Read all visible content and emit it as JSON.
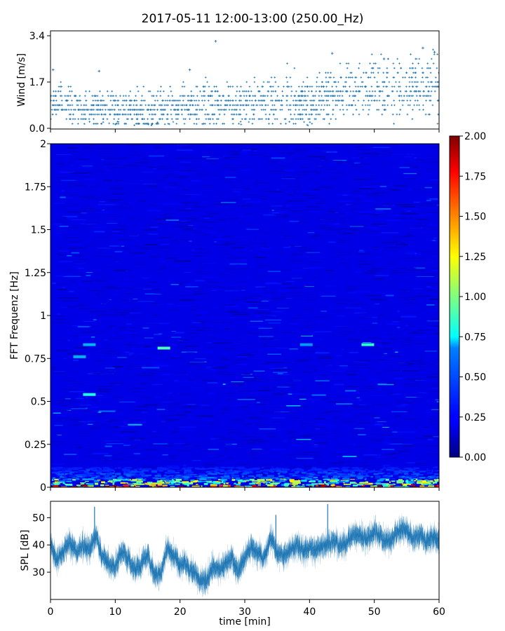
{
  "title": "2017-05-11 12:00-13:00 (250.00_Hz)",
  "colors": {
    "series": "#1f77b4",
    "axis": "#000000",
    "background": "#ffffff"
  },
  "chart_data": [
    {
      "type": "scatter",
      "panel": "wind",
      "ylabel": "Wind [m/s]",
      "xlim": [
        0,
        60
      ],
      "ylim": [
        0,
        3.4
      ],
      "yticks": [
        0.0,
        1.7,
        3.4
      ],
      "ytick_labels": [
        "0.0",
        "1.7",
        "3.4"
      ],
      "xticks": [
        0,
        10,
        20,
        30,
        40,
        50,
        60
      ],
      "marker": "+",
      "color": "#1f77b4",
      "trend": {
        "x": [
          0,
          5,
          10,
          15,
          20,
          25,
          30,
          35,
          40,
          45,
          50,
          55,
          60
        ],
        "y": [
          1.0,
          0.75,
          0.7,
          0.65,
          0.8,
          0.85,
          0.9,
          1.0,
          0.95,
          1.25,
          1.55,
          1.45,
          1.5
        ]
      },
      "outliers": [
        {
          "x": 0.4,
          "y": 2.15
        },
        {
          "x": 7.5,
          "y": 2.1
        },
        {
          "x": 21.5,
          "y": 2.15
        },
        {
          "x": 25.5,
          "y": 3.2
        },
        {
          "x": 43.5,
          "y": 2.75
        },
        {
          "x": 51.5,
          "y": 2.55
        },
        {
          "x": 57.5,
          "y": 2.95
        },
        {
          "x": 59.3,
          "y": 2.8
        }
      ]
    },
    {
      "type": "heatmap",
      "panel": "spectrogram",
      "ylabel": "FFT Frequenz [Hz]",
      "xlim": [
        0,
        60
      ],
      "ylim": [
        0,
        2
      ],
      "yticks": [
        0,
        0.25,
        0.5,
        0.75,
        1,
        1.25,
        1.5,
        1.75,
        2
      ],
      "ytick_labels": [
        "0",
        "0.25",
        "0.5",
        "0.75",
        "1",
        "1.25",
        "1.5",
        "1.75",
        "2"
      ],
      "colormap": "jet",
      "clim": [
        0,
        2
      ],
      "typical_value": 0.2,
      "low_frequency_band": {
        "freq_max": 0.05,
        "value_range": [
          0.8,
          2.0
        ]
      },
      "hotspots": [
        {
          "t": 6,
          "f": 0.54,
          "value": 0.8
        },
        {
          "t": 17.5,
          "f": 0.81,
          "value": 0.9
        },
        {
          "t": 49,
          "f": 0.83,
          "value": 0.85
        },
        {
          "t": 4.5,
          "f": 0.76,
          "value": 0.6
        },
        {
          "t": 6,
          "f": 0.83,
          "value": 0.6
        },
        {
          "t": 39.5,
          "f": 0.83,
          "value": 0.55
        }
      ]
    },
    {
      "type": "colorbar",
      "panel": "colorbar",
      "ticks": [
        0.0,
        0.25,
        0.5,
        0.75,
        1.0,
        1.25,
        1.5,
        1.75,
        2.0
      ],
      "tick_labels": [
        "0.00",
        "0.25",
        "0.50",
        "0.75",
        "1.00",
        "1.25",
        "1.50",
        "1.75",
        "2.00"
      ],
      "colormap": "jet",
      "range": [
        0,
        2
      ]
    },
    {
      "type": "line",
      "panel": "spl",
      "ylabel": "SPL [dB]",
      "xlabel": "time [min]",
      "xlim": [
        0,
        60
      ],
      "ylim": [
        20,
        56
      ],
      "yticks": [
        30,
        40,
        50
      ],
      "ytick_labels": [
        "30",
        "40",
        "50"
      ],
      "xticks": [
        0,
        10,
        20,
        30,
        40,
        50,
        60
      ],
      "xtick_labels": [
        "0",
        "10",
        "20",
        "30",
        "40",
        "50",
        "60"
      ],
      "color": "#1f77b4",
      "x": [
        0,
        1,
        2,
        3,
        4,
        5,
        6,
        7,
        8,
        9,
        10,
        11,
        12,
        13,
        14,
        15,
        16,
        17,
        18,
        19,
        20,
        21,
        22,
        23,
        24,
        25,
        26,
        27,
        28,
        29,
        30,
        31,
        32,
        33,
        34,
        35,
        36,
        37,
        38,
        39,
        40,
        41,
        42,
        43,
        44,
        45,
        46,
        47,
        48,
        49,
        50,
        51,
        52,
        53,
        54,
        55,
        56,
        57,
        58,
        59,
        60
      ],
      "y": [
        40,
        34,
        38,
        41,
        37,
        40,
        38,
        44,
        36,
        33,
        32,
        38,
        35,
        31,
        33,
        36,
        30,
        29,
        39,
        36,
        33,
        32,
        30,
        28,
        27,
        32,
        31,
        33,
        35,
        30,
        36,
        39,
        37,
        35,
        43,
        37,
        36,
        38,
        40,
        38,
        39,
        38,
        40,
        41,
        41,
        39,
        42,
        44,
        43,
        42,
        45,
        43,
        41,
        43,
        46,
        45,
        42,
        44,
        41,
        43,
        42
      ],
      "spikes": [
        {
          "x": 6.8,
          "y": 54
        },
        {
          "x": 34.8,
          "y": 51
        },
        {
          "x": 42.8,
          "y": 55
        }
      ]
    }
  ]
}
